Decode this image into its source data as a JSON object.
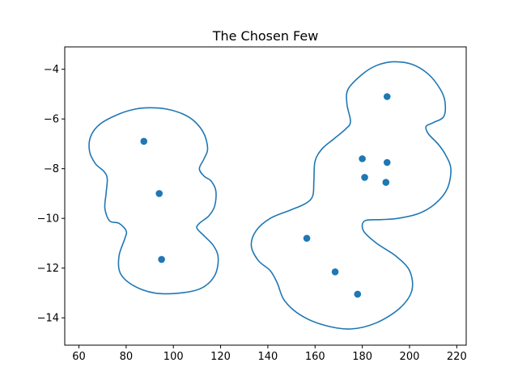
{
  "chart_data": {
    "type": "scatter",
    "title": "The Chosen Few",
    "xlabel": "",
    "ylabel": "",
    "xlim": [
      54,
      224
    ],
    "ylim": [
      -15.1,
      -3.1
    ],
    "xticks": [
      60,
      80,
      100,
      120,
      140,
      160,
      180,
      200,
      220
    ],
    "yticks": [
      -14,
      -12,
      -10,
      -8,
      -6,
      -4
    ],
    "ytick_labels": [
      "−14",
      "−12",
      "−10",
      "−8",
      "−6",
      "−4"
    ],
    "grid": false,
    "point_color": "#1f77b4",
    "points": [
      {
        "x": 87.5,
        "y": -6.9
      },
      {
        "x": 94.0,
        "y": -9.0
      },
      {
        "x": 95.0,
        "y": -11.65
      },
      {
        "x": 190.5,
        "y": -5.1
      },
      {
        "x": 180.0,
        "y": -7.6
      },
      {
        "x": 190.5,
        "y": -7.75
      },
      {
        "x": 181.0,
        "y": -8.35
      },
      {
        "x": 190.0,
        "y": -8.55
      },
      {
        "x": 156.5,
        "y": -10.8
      },
      {
        "x": 168.5,
        "y": -12.15
      },
      {
        "x": 178.0,
        "y": -13.05
      }
    ],
    "enclosures": [
      {
        "color": "#1f77b4",
        "path": [
          [
            90,
            -5.55
          ],
          [
            97,
            -5.6
          ],
          [
            104,
            -5.8
          ],
          [
            109,
            -6.1
          ],
          [
            113,
            -6.6
          ],
          [
            114.5,
            -7.2
          ],
          [
            113,
            -7.6
          ],
          [
            111,
            -8.0
          ],
          [
            113,
            -8.3
          ],
          [
            116,
            -8.5
          ],
          [
            118,
            -8.9
          ],
          [
            117.5,
            -9.5
          ],
          [
            115,
            -9.9
          ],
          [
            111,
            -10.2
          ],
          [
            110,
            -10.4
          ],
          [
            113,
            -10.7
          ],
          [
            117,
            -11.1
          ],
          [
            119,
            -11.6
          ],
          [
            117.5,
            -12.3
          ],
          [
            112,
            -12.8
          ],
          [
            103,
            -13.0
          ],
          [
            92,
            -13.0
          ],
          [
            83,
            -12.7
          ],
          [
            77.5,
            -12.2
          ],
          [
            77,
            -11.5
          ],
          [
            79.5,
            -10.8
          ],
          [
            80,
            -10.5
          ],
          [
            77,
            -10.2
          ],
          [
            73,
            -10.1
          ],
          [
            71,
            -9.6
          ],
          [
            71.5,
            -9.0
          ],
          [
            72,
            -8.4
          ],
          [
            70.5,
            -8.1
          ],
          [
            67,
            -7.8
          ],
          [
            64.5,
            -7.3
          ],
          [
            65,
            -6.7
          ],
          [
            69,
            -6.2
          ],
          [
            77,
            -5.8
          ],
          [
            84,
            -5.6
          ]
        ]
      },
      {
        "color": "#1f77b4",
        "path": [
          [
            193,
            -3.7
          ],
          [
            201,
            -3.8
          ],
          [
            208,
            -4.2
          ],
          [
            213,
            -4.8
          ],
          [
            215,
            -5.3
          ],
          [
            214.5,
            -5.9
          ],
          [
            210,
            -6.15
          ],
          [
            207,
            -6.3
          ],
          [
            208,
            -6.6
          ],
          [
            212,
            -7.0
          ],
          [
            215,
            -7.4
          ],
          [
            217.5,
            -8.0
          ],
          [
            216,
            -8.8
          ],
          [
            211,
            -9.4
          ],
          [
            204,
            -9.8
          ],
          [
            195,
            -10.0
          ],
          [
            188,
            -10.05
          ],
          [
            181,
            -10.1
          ],
          [
            180.5,
            -10.5
          ],
          [
            186,
            -11.0
          ],
          [
            194,
            -11.5
          ],
          [
            200,
            -12.1
          ],
          [
            201,
            -12.9
          ],
          [
            196,
            -13.6
          ],
          [
            186,
            -14.2
          ],
          [
            175,
            -14.45
          ],
          [
            164,
            -14.3
          ],
          [
            154,
            -13.9
          ],
          [
            147,
            -13.3
          ],
          [
            144,
            -12.6
          ],
          [
            141,
            -12.1
          ],
          [
            136,
            -11.7
          ],
          [
            133,
            -11.1
          ],
          [
            135,
            -10.5
          ],
          [
            141,
            -10.0
          ],
          [
            150,
            -9.65
          ],
          [
            156,
            -9.4
          ],
          [
            159,
            -9.1
          ],
          [
            159.5,
            -8.5
          ],
          [
            160,
            -7.7
          ],
          [
            163,
            -7.2
          ],
          [
            168,
            -6.8
          ],
          [
            173,
            -6.4
          ],
          [
            175,
            -6.1
          ],
          [
            173.5,
            -5.4
          ],
          [
            174,
            -4.8
          ],
          [
            180,
            -4.2
          ],
          [
            186,
            -3.85
          ]
        ]
      }
    ]
  }
}
